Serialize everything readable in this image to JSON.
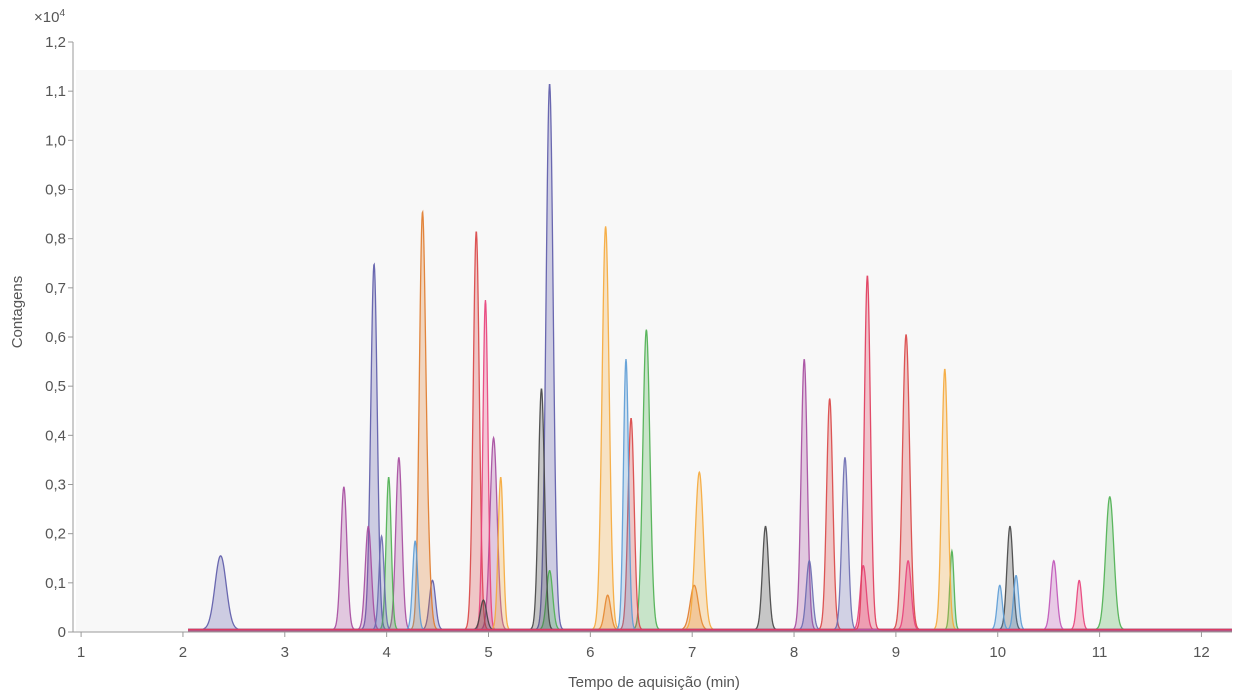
{
  "chart_data": {
    "type": "line",
    "title": "",
    "xlabel": "Tempo de aquisição (min)",
    "ylabel": "Contagens",
    "y_multiplier": "×10",
    "y_multiplier_exp": "4",
    "xlim": [
      0.95,
      12.3
    ],
    "ylim": [
      0,
      1.2
    ],
    "x_ticks": [
      1,
      2,
      3,
      4,
      5,
      6,
      7,
      8,
      9,
      10,
      11,
      12
    ],
    "x_tick_labels": [
      "1",
      "2",
      "3",
      "4",
      "5",
      "6",
      "7",
      "8",
      "9",
      "10",
      "11",
      "12"
    ],
    "y_ticks": [
      0,
      0.1,
      0.2,
      0.3,
      0.4,
      0.5,
      0.6,
      0.7,
      0.8,
      0.9,
      1.0,
      1.1,
      1.2
    ],
    "y_tick_labels": [
      "0",
      "0,1",
      "0,2",
      "0,3",
      "0,4",
      "0,5",
      "0,6",
      "0,7",
      "0,8",
      "0,9",
      "1,0",
      "1,1",
      "1,2"
    ],
    "grid": false,
    "baseline": 0.005,
    "series": [
      {
        "color": "#5c5aa8",
        "values": [
          [
            2.37,
            0.15,
            0.055
          ],
          [
            3.88,
            0.66,
            0.03
          ],
          [
            5.6,
            1.11,
            0.035
          ],
          [
            3.85,
            0.13,
            0.03
          ],
          [
            4.45,
            0.1,
            0.03
          ]
        ]
      },
      {
        "color": "#a54a9e",
        "values": [
          [
            3.58,
            0.29,
            0.03
          ],
          [
            4.12,
            0.35,
            0.03
          ],
          [
            5.05,
            0.39,
            0.035
          ],
          [
            8.1,
            0.55,
            0.03
          ],
          [
            3.82,
            0.21,
            0.03
          ]
        ]
      },
      {
        "color": "#4caf50",
        "values": [
          [
            4.02,
            0.31,
            0.025
          ],
          [
            6.55,
            0.61,
            0.035
          ],
          [
            9.55,
            0.16,
            0.02
          ],
          [
            11.1,
            0.27,
            0.04
          ],
          [
            5.6,
            0.12,
            0.03
          ]
        ]
      },
      {
        "color": "#e07a2a",
        "values": [
          [
            4.35,
            0.81,
            0.03
          ],
          [
            6.17,
            0.07,
            0.03
          ],
          [
            7.02,
            0.09,
            0.04
          ],
          [
            4.4,
            0.15,
            0.03
          ]
        ]
      },
      {
        "color": "#d94545",
        "values": [
          [
            4.88,
            0.81,
            0.03
          ],
          [
            6.4,
            0.43,
            0.03
          ],
          [
            8.35,
            0.47,
            0.03
          ],
          [
            9.1,
            0.6,
            0.035
          ]
        ]
      },
      {
        "color": "#e8407a",
        "values": [
          [
            4.97,
            0.67,
            0.025
          ],
          [
            8.68,
            0.13,
            0.03
          ],
          [
            9.12,
            0.14,
            0.03
          ],
          [
            10.8,
            0.1,
            0.025
          ]
        ]
      },
      {
        "color": "#f5a83a",
        "values": [
          [
            5.12,
            0.31,
            0.025
          ],
          [
            6.15,
            0.82,
            0.035
          ],
          [
            7.07,
            0.32,
            0.04
          ],
          [
            9.48,
            0.53,
            0.03
          ]
        ]
      },
      {
        "color": "#444444",
        "values": [
          [
            5.52,
            0.49,
            0.03
          ],
          [
            7.72,
            0.21,
            0.03
          ],
          [
            10.12,
            0.21,
            0.03
          ],
          [
            4.95,
            0.06,
            0.03
          ]
        ]
      },
      {
        "color": "#5b9bd5",
        "values": [
          [
            6.35,
            0.55,
            0.025
          ],
          [
            10.02,
            0.09,
            0.025
          ],
          [
            10.18,
            0.11,
            0.025
          ],
          [
            4.28,
            0.18,
            0.025
          ]
        ]
      },
      {
        "color": "#6a6ab0",
        "values": [
          [
            8.5,
            0.35,
            0.03
          ],
          [
            8.15,
            0.14,
            0.03
          ],
          [
            3.95,
            0.19,
            0.025
          ]
        ]
      },
      {
        "color": "#c054b8",
        "values": [
          [
            10.55,
            0.14,
            0.03
          ]
        ]
      },
      {
        "color": "#e0385a",
        "values": [
          [
            8.72,
            0.72,
            0.03
          ]
        ]
      }
    ]
  }
}
